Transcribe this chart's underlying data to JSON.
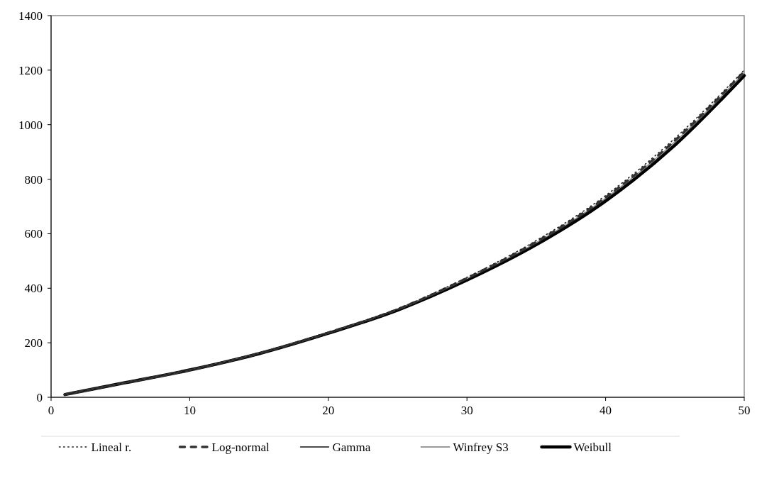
{
  "chart_data": {
    "type": "line",
    "x": [
      1,
      5,
      10,
      15,
      20,
      25,
      30,
      35,
      40,
      45,
      50
    ],
    "series": [
      {
        "name": "Lineal r.",
        "color": "#222222",
        "line_style": "dotted",
        "values": [
          10,
          50,
          101,
          162,
          238,
          325,
          440,
          575,
          740,
          950,
          1200
        ]
      },
      {
        "name": "Log-normal",
        "color": "#333333",
        "line_style": "dashed",
        "values": [
          10,
          50,
          100,
          161,
          237,
          323,
          437,
          570,
          733,
          942,
          1195
        ]
      },
      {
        "name": "Gamma",
        "color": "#111111",
        "line_style": "solid",
        "values": [
          10,
          50,
          100,
          160,
          235,
          321,
          432,
          563,
          725,
          930,
          1185
        ]
      },
      {
        "name": "Winfrey S3",
        "color": "#999999",
        "line_style": "solid",
        "values": [
          10,
          50,
          100,
          161,
          236,
          322,
          435,
          567,
          730,
          937,
          1190
        ]
      },
      {
        "name": "Weibull",
        "color": "#000000",
        "line_style": "solid",
        "values": [
          10,
          50,
          100,
          160,
          235,
          320,
          430,
          560,
          720,
          925,
          1180
        ]
      }
    ],
    "xlim": [
      0,
      50
    ],
    "xticks": [
      0,
      10,
      20,
      30,
      40,
      50
    ],
    "ylim": [
      0,
      1400
    ],
    "yticks": [
      0,
      200,
      400,
      600,
      800,
      1000,
      1200,
      1400
    ],
    "grid": false,
    "legend": "bottom"
  }
}
